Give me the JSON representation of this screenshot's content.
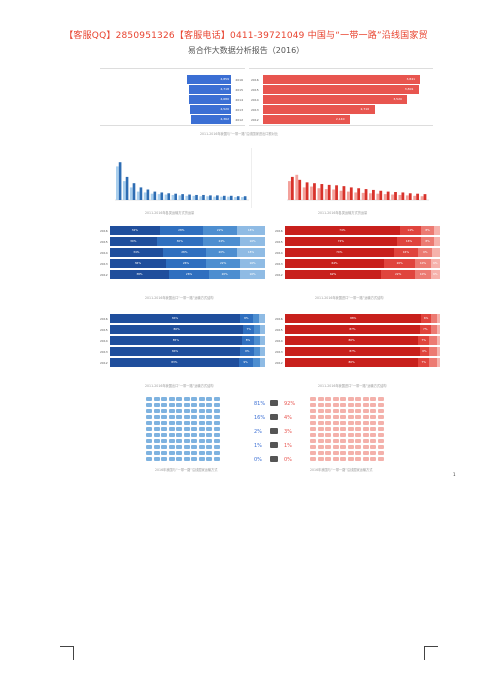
{
  "header": {
    "contact": "【客服QQ】2850951326【客服电话】0411-39721049 中国与“一带一路”沿线国家贸",
    "subtitle": "易合作大数据分析报告（2016）"
  },
  "colors": {
    "blue": "#3b6fd4",
    "red": "#e8554f",
    "blue_dark": "#1f4e9c",
    "red_dark": "#c8201c"
  },
  "hbar_left": {
    "rows": [
      {
        "label": "2016",
        "value": "4,859"
      },
      {
        "label": "2015",
        "value": "4,718"
      },
      {
        "label": "2014",
        "value": "4,680"
      },
      {
        "label": "2013",
        "value": "4,520"
      },
      {
        "label": "2012",
        "value": "4,362"
      }
    ],
    "values_num": [
      0.35,
      0.34,
      0.34,
      0.33,
      0.32
    ]
  },
  "hbar_right": {
    "rows": [
      {
        "label": "2016",
        "value": "3,841"
      },
      {
        "label": "2015",
        "value": "3,801"
      },
      {
        "label": "2014",
        "value": "3,520"
      },
      {
        "label": "2013",
        "value": "2,710"
      },
      {
        "label": "2012",
        "value": "2,140"
      }
    ],
    "values_num": [
      0.96,
      0.95,
      0.88,
      0.68,
      0.53
    ]
  },
  "caption_top": "2011-2016年我国与“一带一路”沿线国家进出口额对比",
  "mini_left": {
    "caption": "2011-2016年各类运输方式货运量",
    "values": [
      0.9,
      0.55,
      0.4,
      0.3,
      0.25,
      0.2,
      0.18,
      0.16,
      0.15,
      0.14,
      0.13,
      0.12,
      0.12,
      0.11,
      0.11,
      0.1,
      0.1,
      0.09,
      0.09
    ],
    "light": [
      0.8,
      0.45,
      0.3,
      0.2,
      0.18,
      0.15,
      0.14,
      0.13,
      0.12,
      0.11,
      0.1,
      0.1,
      0.09,
      0.09,
      0.08,
      0.08,
      0.08,
      0.07,
      0.07
    ]
  },
  "mini_right": {
    "caption": "2011-2016年各类运输方式货运量",
    "values": [
      0.55,
      0.48,
      0.42,
      0.4,
      0.38,
      0.36,
      0.35,
      0.33,
      0.3,
      0.28,
      0.26,
      0.24,
      0.22,
      0.2,
      0.19,
      0.18,
      0.16,
      0.15,
      0.14
    ],
    "light": [
      0.45,
      0.6,
      0.3,
      0.32,
      0.28,
      0.26,
      0.25,
      0.22,
      0.2,
      0.18,
      0.17,
      0.16,
      0.15,
      0.14,
      0.13,
      0.12,
      0.11,
      0.1,
      0.09
    ]
  },
  "stack_mid_left": {
    "caption": "2011-2016年我国出口“一带一路”运输方式结构",
    "rows": [
      {
        "label": "2016",
        "segs": [
          32,
          28,
          22,
          18
        ]
      },
      {
        "label": "2015",
        "segs": [
          30,
          30,
          24,
          16
        ]
      },
      {
        "label": "2014",
        "segs": [
          34,
          28,
          20,
          18
        ]
      },
      {
        "label": "2013",
        "segs": [
          36,
          26,
          22,
          16
        ]
      },
      {
        "label": "2012",
        "segs": [
          38,
          26,
          20,
          16
        ]
      }
    ]
  },
  "stack_mid_right": {
    "caption": "2011-2016年我国进口“一带一路”运输方式结构",
    "rows": [
      {
        "label": "2016",
        "segs": [
          74,
          14,
          8,
          4
        ]
      },
      {
        "label": "2015",
        "segs": [
          72,
          16,
          8,
          4
        ]
      },
      {
        "label": "2014",
        "segs": [
          70,
          16,
          9,
          5
        ]
      },
      {
        "label": "2013",
        "segs": [
          64,
          20,
          10,
          6
        ]
      },
      {
        "label": "2012",
        "segs": [
          62,
          22,
          10,
          6
        ]
      }
    ]
  },
  "stack_low_left": {
    "caption": "2011-2016年我国出口“一带一路”运输方式结构",
    "rows": [
      {
        "label": "2016",
        "segs": [
          84,
          8,
          4,
          4
        ]
      },
      {
        "label": "2015",
        "segs": [
          86,
          7,
          4,
          3
        ]
      },
      {
        "label": "2014",
        "segs": [
          85,
          8,
          4,
          3
        ]
      },
      {
        "label": "2013",
        "segs": [
          84,
          9,
          4,
          3
        ]
      },
      {
        "label": "2012",
        "segs": [
          83,
          9,
          5,
          3
        ]
      }
    ]
  },
  "stack_low_right": {
    "caption": "2011-2016年我国进口“一带一路”运输方式结构",
    "rows": [
      {
        "label": "2016",
        "segs": [
          88,
          6,
          4,
          2
        ]
      },
      {
        "label": "2015",
        "segs": [
          87,
          7,
          4,
          2
        ]
      },
      {
        "label": "2014",
        "segs": [
          86,
          7,
          5,
          2
        ]
      },
      {
        "label": "2013",
        "segs": [
          87,
          6,
          5,
          2
        ]
      },
      {
        "label": "2012",
        "segs": [
          86,
          7,
          5,
          2
        ]
      }
    ]
  },
  "picto": {
    "left_pcts": [
      "81%",
      "16%",
      "2%",
      "1%",
      "0%"
    ],
    "right_pcts": [
      "92%",
      "4%",
      "3%",
      "1%",
      "0%"
    ],
    "caption": "2016年我国与“一带一路”沿线国家运输方式"
  },
  "page_number": "1"
}
